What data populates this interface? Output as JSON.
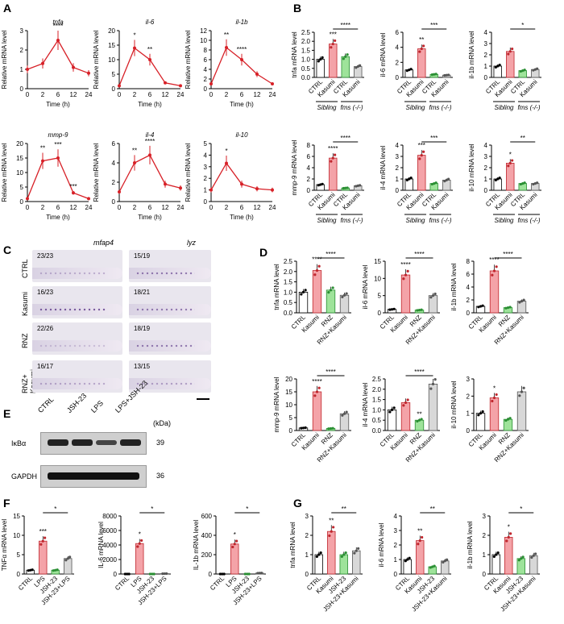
{
  "colors": {
    "line": "#d72027",
    "ctrl": "#ffffff",
    "kasumi": "#f4a3a8",
    "green": "#9ee39a",
    "grey": "#d8d8d8"
  },
  "panels": {
    "A": "A",
    "B": "B",
    "C": "C",
    "D": "D",
    "E": "E",
    "F": "F",
    "G": "G"
  },
  "panelA": {
    "xlabel": "Time (h)",
    "ylabel": "Relative mRNA level",
    "charts": [
      {
        "gene": "tnfa",
        "x": [
          0,
          2,
          6,
          12,
          24
        ],
        "y": [
          1.0,
          1.3,
          2.5,
          1.1,
          0.8
        ],
        "yticks": [
          "0",
          "1",
          "2",
          "3"
        ],
        "ymax": 3,
        "stars": [
          "",
          "",
          "****",
          "",
          ""
        ]
      },
      {
        "gene": "il-6",
        "x": [
          0,
          2,
          6,
          12,
          24
        ],
        "y": [
          1.0,
          14.0,
          10.0,
          2.0,
          1.0
        ],
        "yticks": [
          "0",
          "5",
          "10",
          "15",
          "20"
        ],
        "ymax": 20,
        "stars": [
          "",
          "*",
          "**",
          "",
          ""
        ]
      },
      {
        "gene": "il-1b",
        "x": [
          0,
          2,
          6,
          12,
          24
        ],
        "y": [
          1.0,
          8.5,
          6.0,
          3.0,
          1.0
        ],
        "yticks": [
          "0",
          "2",
          "4",
          "6",
          "8",
          "10",
          "12"
        ],
        "ymax": 12,
        "stars": [
          "",
          "**",
          "****",
          "",
          ""
        ]
      },
      {
        "gene": "mmp-9",
        "x": [
          0,
          2,
          6,
          12,
          24
        ],
        "y": [
          1.0,
          14.0,
          15.0,
          3.0,
          1.0
        ],
        "yticks": [
          "0",
          "5",
          "10",
          "15",
          "20"
        ],
        "ymax": 20,
        "stars": [
          "",
          "**",
          "***",
          "***",
          ""
        ]
      },
      {
        "gene": "il-4",
        "x": [
          0,
          2,
          6,
          12,
          24
        ],
        "y": [
          1.0,
          4.0,
          4.8,
          1.8,
          1.4
        ],
        "yticks": [
          "0",
          "2",
          "4",
          "6"
        ],
        "ymax": 6,
        "stars": [
          "",
          "**",
          "****",
          "",
          ""
        ]
      },
      {
        "gene": "il-10",
        "x": [
          0,
          2,
          6,
          12,
          24
        ],
        "y": [
          1.0,
          3.3,
          1.5,
          1.1,
          1.0
        ],
        "yticks": [
          "0",
          "1",
          "2",
          "3",
          "4",
          "5"
        ],
        "ymax": 5,
        "stars": [
          "",
          "*",
          "",
          "",
          ""
        ]
      }
    ]
  },
  "panelB": {
    "cats": [
      "CTRL",
      "Kasumi",
      "CTRL",
      "Kasumi"
    ],
    "groups": [
      "Sibling",
      "fms (-/-)"
    ],
    "charts": [
      {
        "gene": "tnfa",
        "ymax": 2.5,
        "yticks": [
          "0.0",
          "0.5",
          "1.0",
          "1.5",
          "2.0",
          "2.5"
        ],
        "values": [
          1.0,
          1.85,
          1.15,
          0.6
        ],
        "stars": [
          "",
          "***",
          "",
          ""
        ],
        "bracket": "****"
      },
      {
        "gene": "il-6",
        "ymax": 6,
        "yticks": [
          "0",
          "2",
          "4",
          "6"
        ],
        "values": [
          1.0,
          3.8,
          0.4,
          0.3
        ],
        "stars": [
          "",
          "**",
          "",
          ""
        ],
        "bracket": "***"
      },
      {
        "gene": "il-1b",
        "ymax": 4,
        "yticks": [
          "0",
          "1",
          "2",
          "3",
          "4"
        ],
        "values": [
          1.0,
          2.3,
          0.6,
          0.7
        ],
        "stars": [
          "",
          "",
          "",
          ""
        ],
        "bracket": "*"
      },
      {
        "gene": "mmp-9",
        "ymax": 8,
        "yticks": [
          "0",
          "2",
          "4",
          "6",
          "8"
        ],
        "values": [
          1.0,
          5.7,
          0.4,
          0.8
        ],
        "stars": [
          "",
          "****",
          "",
          ""
        ],
        "bracket": "****"
      },
      {
        "gene": "il-4",
        "ymax": 4,
        "yticks": [
          "0",
          "1",
          "2",
          "3",
          "4"
        ],
        "values": [
          1.0,
          3.1,
          0.6,
          0.9
        ],
        "stars": [
          "",
          "***",
          "",
          ""
        ],
        "bracket": "***"
      },
      {
        "gene": "il-10",
        "ymax": 4,
        "yticks": [
          "0",
          "1",
          "2",
          "3",
          "4"
        ],
        "values": [
          1.0,
          2.4,
          0.6,
          0.6
        ],
        "stars": [
          "",
          "*",
          "",
          ""
        ],
        "bracket": "**"
      }
    ]
  },
  "panelC": {
    "cols": [
      "mfap4",
      "lyz"
    ],
    "rows": [
      {
        "label": "CTRL",
        "a": "23/23",
        "b": "15/19"
      },
      {
        "label": "Kasumi",
        "a": "16/23",
        "b": "18/21"
      },
      {
        "label": "RNZ",
        "a": "22/26",
        "b": "18/19"
      },
      {
        "label": "RNZ+ Kasumi",
        "a": "16/17",
        "b": "13/15"
      }
    ]
  },
  "panelD": {
    "cats": [
      "CTRL",
      "Kasumi",
      "RNZ",
      "RNZ+Kasumi"
    ],
    "charts": [
      {
        "gene": "tnfa",
        "ymax": 2.5,
        "yticks": [
          "0.0",
          "0.5",
          "1.0",
          "1.5",
          "2.0",
          "2.5"
        ],
        "values": [
          1.0,
          2.05,
          1.1,
          0.85
        ],
        "stars": [
          "",
          "****",
          "",
          ""
        ],
        "bracket": "****"
      },
      {
        "gene": "il-6",
        "ymax": 15,
        "yticks": [
          "0",
          "5",
          "10",
          "15"
        ],
        "values": [
          1.0,
          11.0,
          0.8,
          5.0
        ],
        "stars": [
          "",
          "****",
          "",
          ""
        ],
        "bracket": "****"
      },
      {
        "gene": "il-1b",
        "ymax": 8,
        "yticks": [
          "0",
          "2",
          "4",
          "6",
          "8"
        ],
        "values": [
          1.0,
          6.5,
          0.8,
          1.8
        ],
        "stars": [
          "",
          "****",
          "",
          ""
        ],
        "bracket": "****"
      },
      {
        "gene": "mmp-9",
        "ymax": 20,
        "yticks": [
          "0",
          "5",
          "10",
          "15",
          "20"
        ],
        "values": [
          1.0,
          15.0,
          0.8,
          6.5
        ],
        "stars": [
          "",
          "****",
          "",
          ""
        ],
        "bracket": "****"
      },
      {
        "gene": "il-4",
        "ymax": 2.5,
        "yticks": [
          "0.0",
          "0.5",
          "1.0",
          "1.5",
          "2.0",
          "2.5"
        ],
        "values": [
          1.0,
          1.35,
          0.5,
          2.25
        ],
        "stars": [
          "",
          "",
          "**",
          ""
        ],
        "bracket": "****"
      },
      {
        "gene": "il-10",
        "ymax": 3,
        "yticks": [
          "0",
          "1",
          "2",
          "3"
        ],
        "values": [
          1.0,
          1.9,
          0.65,
          2.25
        ],
        "stars": [
          "",
          "*",
          "",
          ""
        ],
        "bracket": ""
      }
    ]
  },
  "panelE": {
    "lanes": [
      "CTRL",
      "JSH-23",
      "LPS",
      "LPS+JSH-23"
    ],
    "kda": "(kDa)",
    "bands": [
      {
        "name": "IκBα",
        "kda": "39"
      },
      {
        "name": "GAPDH",
        "kda": "36"
      }
    ]
  },
  "panelF": {
    "cats": [
      "CTRL",
      "LPS",
      "JSH-23",
      "JSH-23+LPS"
    ],
    "charts": [
      {
        "gene": "TNFα",
        "ymax": 15,
        "yticks": [
          "0",
          "5",
          "10",
          "15"
        ],
        "values": [
          1.0,
          8.5,
          1.0,
          4.0
        ],
        "stars": [
          "",
          "***",
          "",
          ""
        ],
        "bracket": "*"
      },
      {
        "gene": "IL-6",
        "ymax": 8000,
        "yticks": [
          "0",
          "2000",
          "4000",
          "6000",
          "8000"
        ],
        "values": [
          0,
          4200,
          0,
          50
        ],
        "stars": [
          "",
          "*",
          "",
          ""
        ],
        "bracket": "*"
      },
      {
        "gene": "IL-1b",
        "ymax": 600,
        "yticks": [
          "0",
          "200",
          "400",
          "600"
        ],
        "values": [
          0,
          310,
          0,
          10
        ],
        "stars": [
          "",
          "*",
          "",
          ""
        ],
        "bracket": "*"
      }
    ]
  },
  "panelG": {
    "cats": [
      "CTRL",
      "Kasumi",
      "JSH-23",
      "JSH-23+Kasumi"
    ],
    "charts": [
      {
        "gene": "tnfa",
        "ymax": 3,
        "yticks": [
          "0",
          "1",
          "2",
          "3"
        ],
        "values": [
          1.0,
          2.2,
          1.0,
          1.2
        ],
        "stars": [
          "",
          "**",
          "",
          ""
        ],
        "bracket": "**"
      },
      {
        "gene": "il-6",
        "ymax": 4,
        "yticks": [
          "0",
          "1",
          "2",
          "3",
          "4"
        ],
        "values": [
          1.0,
          2.3,
          0.5,
          0.9
        ],
        "stars": [
          "",
          "**",
          "",
          ""
        ],
        "bracket": "**"
      },
      {
        "gene": "il-1b",
        "ymax": 3,
        "yticks": [
          "0",
          "1",
          "2",
          "3"
        ],
        "values": [
          1.0,
          1.9,
          0.8,
          0.95
        ],
        "stars": [
          "",
          "*",
          "",
          ""
        ],
        "bracket": "*"
      }
    ]
  }
}
